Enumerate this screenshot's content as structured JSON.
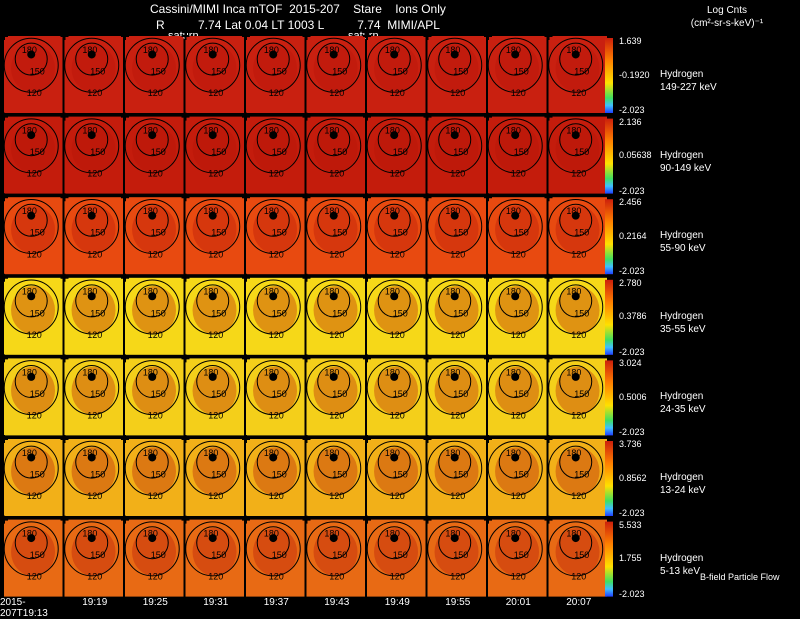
{
  "header": {
    "line1": "Cassini/MIMI Inca mTOF  2015-207    Stare    Ions Only",
    "line2": "R          7.74 Lat 0.04 LT 1003 L          7.74  MIMI/APL",
    "saturn_label": "saturn"
  },
  "units": {
    "line1": "Log Cnts",
    "line2": "(cm²-sr-s-keV)⁻¹"
  },
  "footer_note": "B-field Particle Flow",
  "chart_data": {
    "type": "heatmap",
    "title": "Cassini/MIMI Inca mTOF 2015-207 Stare Ions Only",
    "times": [
      "2015-207T19:13",
      "19:19",
      "19:25",
      "19:31",
      "19:37",
      "19:43",
      "19:49",
      "19:55",
      "20:01",
      "20:07"
    ],
    "contour_labels": [
      "180",
      "150",
      "120"
    ],
    "colors": {
      "red": "#cc1f0c",
      "orange": "#ff6a00",
      "yellow": "#ffe000",
      "green": "#40e060",
      "blue": "#2040ff"
    },
    "bands": [
      {
        "species": "Hydrogen",
        "energy": "149-227 keV",
        "cb_max": "1.639",
        "cb_mid": "-0.1920",
        "cb_min": "-2.023",
        "base": "#c92010"
      },
      {
        "species": "Hydrogen",
        "energy": "90-149 keV",
        "cb_max": "2.136",
        "cb_mid": "0.05638",
        "cb_min": "-2.023",
        "base": "#c41c0c"
      },
      {
        "species": "Hydrogen",
        "energy": "55-90 keV",
        "cb_max": "2.456",
        "cb_mid": "0.2164",
        "cb_min": "-2.023",
        "base": "#e84a10"
      },
      {
        "species": "Hydrogen",
        "energy": "35-55 keV",
        "cb_max": "2.780",
        "cb_mid": "0.3786",
        "cb_min": "-2.023",
        "base": "#f6d818"
      },
      {
        "species": "Hydrogen",
        "energy": "24-35 keV",
        "cb_max": "3.024",
        "cb_mid": "0.5006",
        "cb_min": "-2.023",
        "base": "#f4cf1a"
      },
      {
        "species": "Hydrogen",
        "energy": "13-24 keV",
        "cb_max": "3.736",
        "cb_mid": "0.8562",
        "cb_min": "-2.023",
        "base": "#f2b018"
      },
      {
        "species": "Hydrogen",
        "energy": "5-13 keV",
        "cb_max": "5.533",
        "cb_mid": "1.755",
        "cb_min": "-2.023",
        "base": "#e86a14"
      }
    ]
  }
}
